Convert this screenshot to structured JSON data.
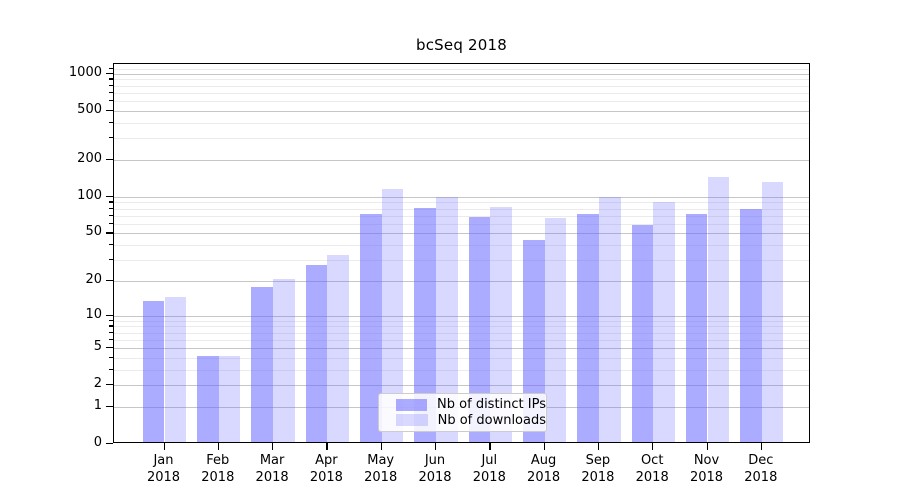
{
  "title": "bcSeq 2018",
  "chart_data": {
    "type": "bar",
    "title": "bcSeq 2018",
    "categories": [
      "Jan",
      "Feb",
      "Mar",
      "Apr",
      "May",
      "Jun",
      "Jul",
      "Aug",
      "Sep",
      "Oct",
      "Nov",
      "Dec"
    ],
    "x_sub_label": "2018",
    "series": [
      {
        "name": "Nb of distinct IPs",
        "color": "rgba(102,102,255,0.55)",
        "values": [
          13,
          4,
          17,
          26,
          70,
          78,
          66,
          42,
          70,
          56,
          70,
          76
        ]
      },
      {
        "name": "Nb of downloads",
        "color": "rgba(102,102,255,0.25)",
        "values": [
          14,
          4,
          20,
          32,
          112,
          95,
          80,
          64,
          95,
          87,
          140,
          128
        ]
      }
    ],
    "y_axis": {
      "scale": "log1p",
      "ticks": [
        0,
        1,
        2,
        5,
        10,
        20,
        50,
        100,
        200,
        500,
        1000
      ],
      "minor_ticks": [
        3,
        4,
        6,
        7,
        8,
        9,
        30,
        40,
        60,
        70,
        80,
        90,
        300,
        400,
        600,
        700,
        800,
        900,
        1100
      ],
      "top_value": 1200
    },
    "grid": {
      "major_color": "#c6c6c6",
      "minor_color": "#ebebeb"
    },
    "legend_position": "inside-bottom-center",
    "colors": {
      "spine": "#000000",
      "legend_border": "#cccccc",
      "background": "#ffffff"
    }
  }
}
